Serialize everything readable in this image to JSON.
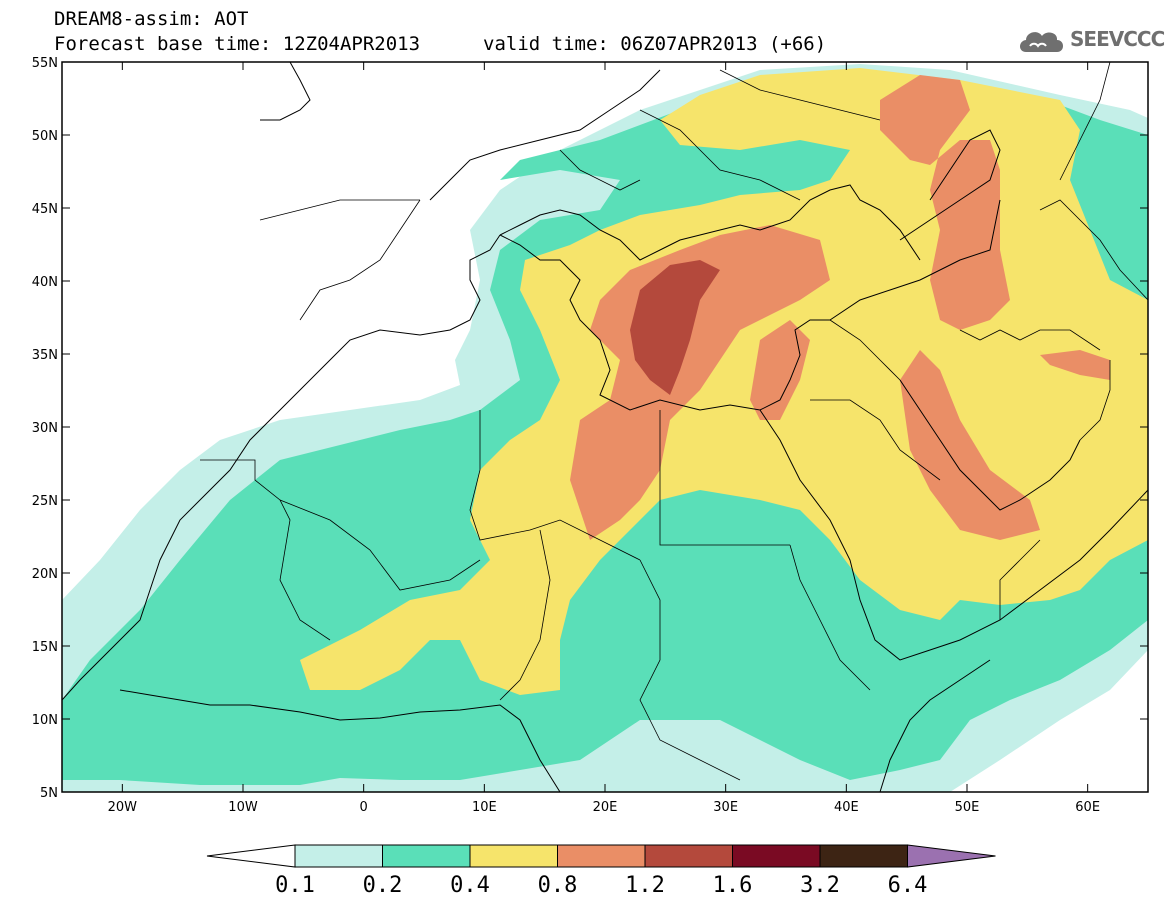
{
  "header": {
    "title": "DREAM8-assim: AOT",
    "base_time": "Forecast base time: 12Z04APR2013",
    "valid_time": "valid time: 06Z07APR2013 (+66)"
  },
  "logo": {
    "text": "SEEVCCC",
    "icon": "cloud-logo-icon"
  },
  "map": {
    "lon_range": [
      -25,
      65
    ],
    "lat_range": [
      5,
      55
    ],
    "x_ticks": [
      {
        "lon": -20,
        "label": "20W"
      },
      {
        "lon": -10,
        "label": "10W"
      },
      {
        "lon": 0,
        "label": "0"
      },
      {
        "lon": 10,
        "label": "10E"
      },
      {
        "lon": 20,
        "label": "20E"
      },
      {
        "lon": 30,
        "label": "30E"
      },
      {
        "lon": 40,
        "label": "40E"
      },
      {
        "lon": 50,
        "label": "50E"
      },
      {
        "lon": 60,
        "label": "60E"
      }
    ],
    "y_ticks": [
      {
        "lat": 55,
        "label": "55N"
      },
      {
        "lat": 50,
        "label": "50N"
      },
      {
        "lat": 45,
        "label": "45N"
      },
      {
        "lat": 40,
        "label": "40N"
      },
      {
        "lat": 35,
        "label": "35N"
      },
      {
        "lat": 30,
        "label": "30N"
      },
      {
        "lat": 25,
        "label": "25N"
      },
      {
        "lat": 20,
        "label": "20N"
      },
      {
        "lat": 15,
        "label": "15N"
      },
      {
        "lat": 10,
        "label": "10N"
      },
      {
        "lat": 5,
        "label": "5N"
      }
    ]
  },
  "colorbar": {
    "colors": [
      "#c4efe8",
      "#5adfb8",
      "#f6e46b",
      "#ea8e66",
      "#b4493c",
      "#7a0a23",
      "#3d2414"
    ],
    "under_color": "#ffffff",
    "over_color": "#9b71b0",
    "labels": [
      "0.1",
      "0.2",
      "0.4",
      "0.8",
      "1.2",
      "1.6",
      "3.2",
      "6.4"
    ]
  }
}
